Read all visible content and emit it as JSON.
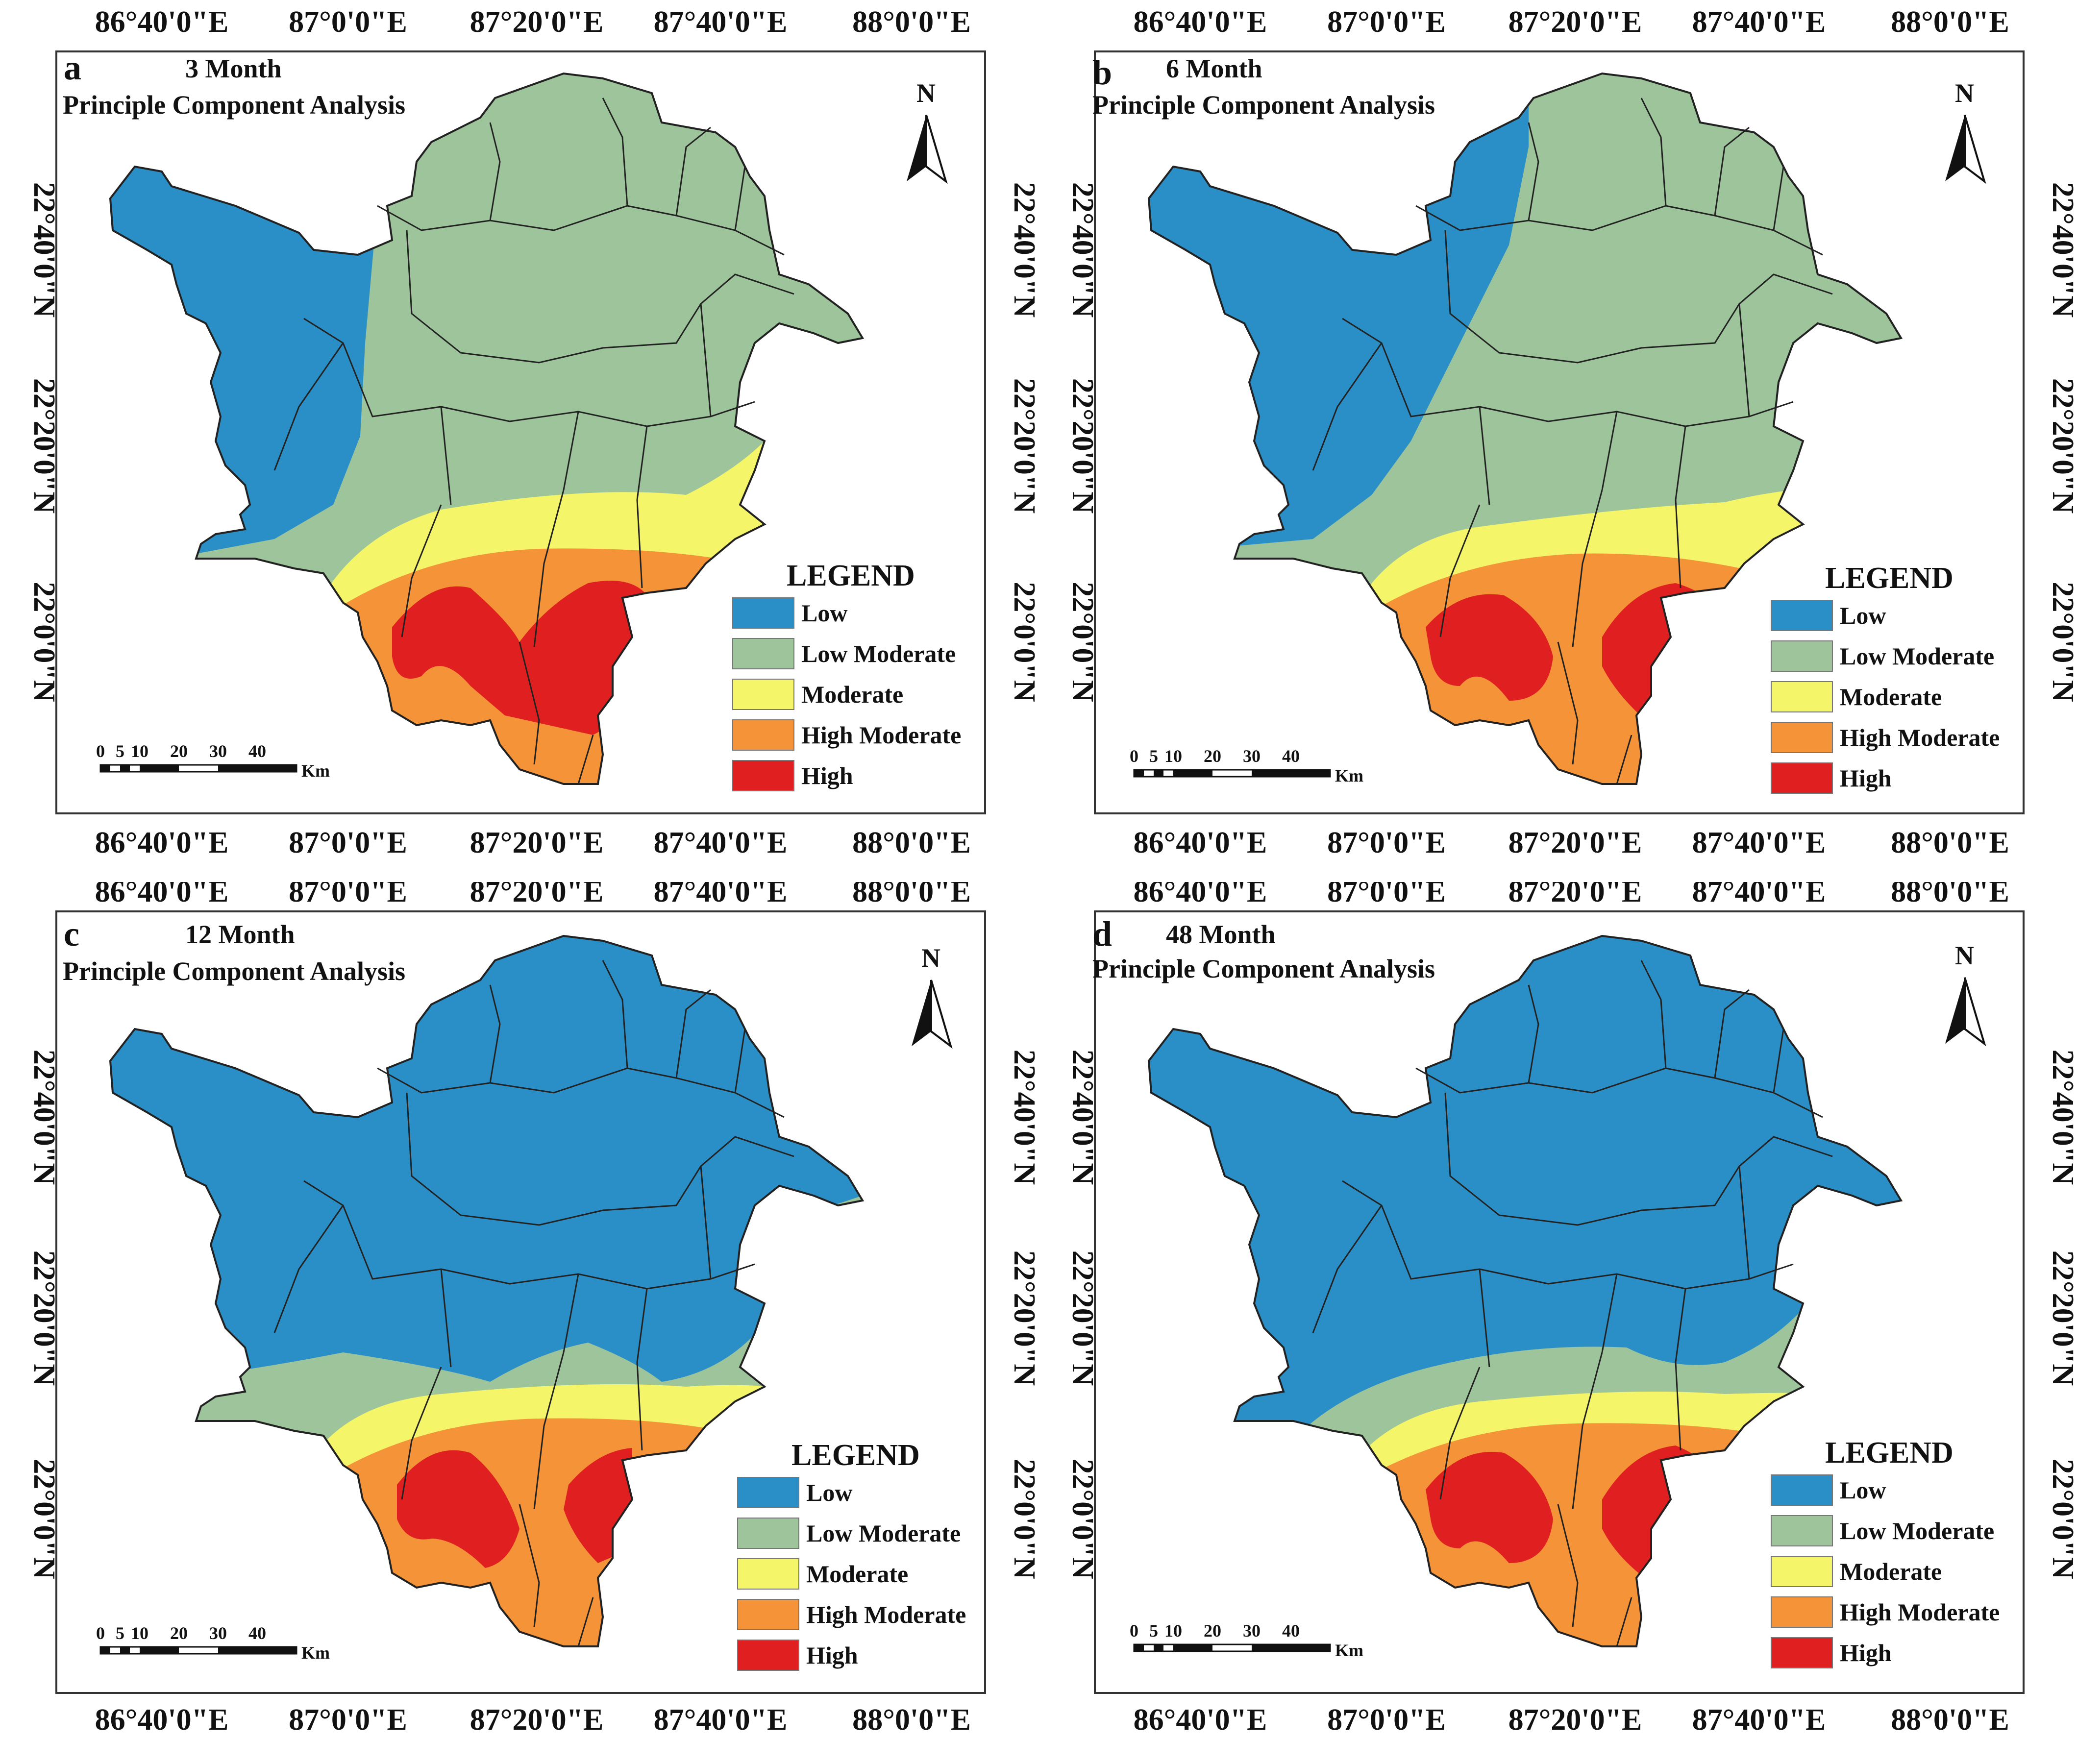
{
  "colors": {
    "low": "#2b8fc7",
    "low_moderate": "#9dc49a",
    "moderate": "#f5f56a",
    "high_moderate": "#f59338",
    "high": "#e02020",
    "boundary": "#222222",
    "frame": "#333333"
  },
  "axis": {
    "lon_labels": [
      "86°40'0\"E",
      "87°0'0\"E",
      "87°20'0\"E",
      "87°40'0\"E",
      "88°0'0\"E"
    ],
    "lat_labels": [
      "22°40'0\"N",
      "22°20'0\"N",
      "22°0'0\"N"
    ]
  },
  "legend": {
    "title": "LEGEND",
    "classes": [
      {
        "key": "low",
        "label": "Low"
      },
      {
        "key": "low_moderate",
        "label": "Low Moderate"
      },
      {
        "key": "moderate",
        "label": "Moderate"
      },
      {
        "key": "high_moderate",
        "label": "High Moderate"
      },
      {
        "key": "high",
        "label": "High"
      }
    ]
  },
  "north_arrow": {
    "label": "N",
    "icon": "north-arrow-icon"
  },
  "scalebar": {
    "ticks": [
      "0",
      "5",
      "10",
      "20",
      "30",
      "40"
    ],
    "unit": "Km"
  },
  "panels": [
    {
      "id": "a",
      "label": "a",
      "period": "3 Month",
      "method": "Principle Component Analysis"
    },
    {
      "id": "b",
      "label": "b",
      "period": "6 Month",
      "method": "Principle Component Analysis"
    },
    {
      "id": "c",
      "label": "c",
      "period": "12 Month",
      "method": "Principle Component Analysis"
    },
    {
      "id": "d",
      "label": "d",
      "period": "48 Month",
      "method": "Principle Component Analysis"
    }
  ]
}
